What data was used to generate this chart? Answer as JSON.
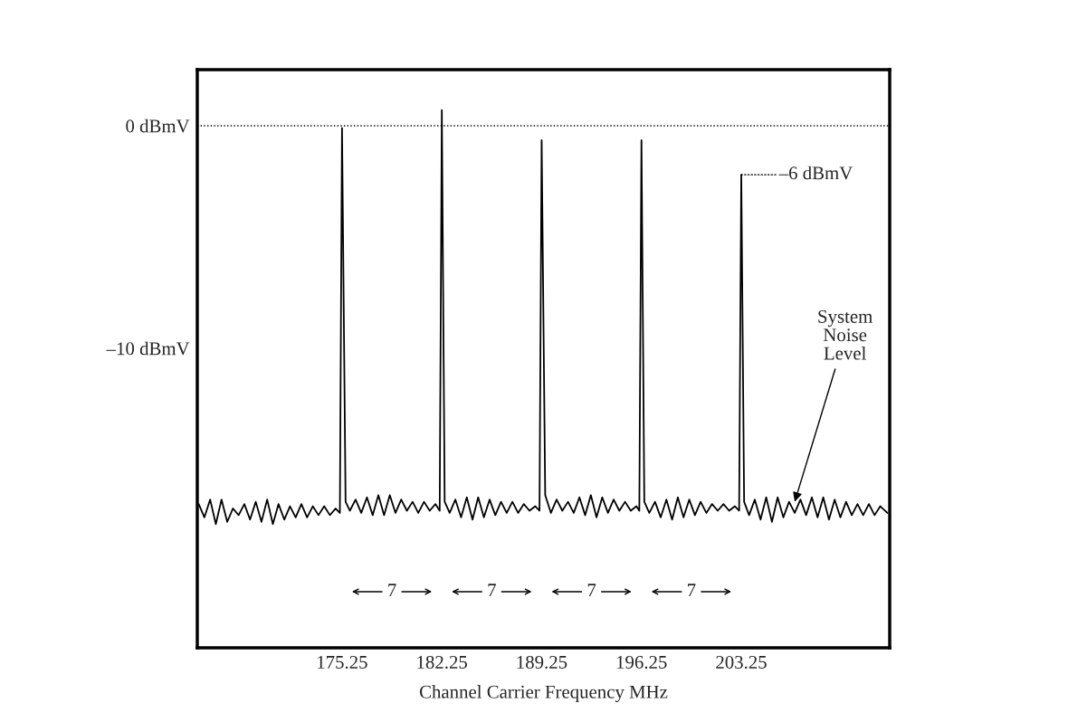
{
  "chart_data": {
    "type": "line",
    "xlabel": "Channel Carrier Frequency MHz",
    "x": [
      165.2,
      165.6,
      166.0,
      166.4,
      166.8,
      167.2,
      167.6,
      168.0,
      168.4,
      168.8,
      169.2,
      169.6,
      170.0,
      170.4,
      170.8,
      171.2,
      171.6,
      172.0,
      172.4,
      172.8,
      173.2,
      173.6,
      174.0,
      174.4,
      174.8,
      175.1,
      175.25,
      175.5,
      175.8,
      176.2,
      176.6,
      177.0,
      177.4,
      177.8,
      178.2,
      178.6,
      179.0,
      179.4,
      179.8,
      180.2,
      180.6,
      181.0,
      181.4,
      181.8,
      182.1,
      182.25,
      182.45,
      182.8,
      183.2,
      183.6,
      184.0,
      184.4,
      184.8,
      185.2,
      185.6,
      186.0,
      186.4,
      186.8,
      187.2,
      187.6,
      188.0,
      188.4,
      188.8,
      189.1,
      189.25,
      189.5,
      189.9,
      190.3,
      190.7,
      191.1,
      191.5,
      191.9,
      192.3,
      192.7,
      193.1,
      193.5,
      193.9,
      194.3,
      194.7,
      195.1,
      195.5,
      195.9,
      196.1,
      196.25,
      196.45,
      196.8,
      197.2,
      197.6,
      198.0,
      198.4,
      198.8,
      199.2,
      199.6,
      200.0,
      200.4,
      200.8,
      201.2,
      201.6,
      202.0,
      202.4,
      202.8,
      203.1,
      203.25,
      203.45,
      203.8,
      204.2,
      204.6,
      205.0,
      205.4,
      205.8,
      206.2,
      206.6,
      207.0,
      207.4,
      207.8,
      208.2,
      208.6,
      209.0,
      209.4,
      209.8,
      210.2,
      210.6,
      211.0,
      211.4,
      211.8,
      212.2,
      212.6,
      213.0,
      213.5
    ],
    "series": [
      {
        "color": "#000000",
        "values": [
          -17.0,
          -17.6,
          -16.8,
          -17.9,
          -16.8,
          -17.8,
          -17.2,
          -17.5,
          -17.0,
          -17.7,
          -16.9,
          -17.8,
          -16.8,
          -17.9,
          -17.0,
          -17.7,
          -17.1,
          -17.6,
          -17.0,
          -17.6,
          -17.1,
          -17.5,
          -17.1,
          -17.5,
          -17.2,
          -17.4,
          -0.1,
          -16.9,
          -17.3,
          -16.8,
          -17.4,
          -16.7,
          -17.5,
          -16.6,
          -17.5,
          -16.6,
          -17.4,
          -16.8,
          -17.3,
          -16.9,
          -17.4,
          -16.9,
          -17.3,
          -17.0,
          -17.3,
          0.7,
          -16.9,
          -17.4,
          -16.8,
          -17.6,
          -16.7,
          -17.7,
          -16.7,
          -17.6,
          -16.8,
          -17.5,
          -16.9,
          -17.4,
          -16.9,
          -17.4,
          -17.0,
          -17.3,
          -17.1,
          -17.3,
          -0.65,
          -16.6,
          -17.4,
          -16.8,
          -17.3,
          -16.9,
          -17.4,
          -16.7,
          -17.5,
          -16.6,
          -17.6,
          -16.7,
          -17.4,
          -16.8,
          -17.3,
          -16.9,
          -17.3,
          -17.1,
          -17.3,
          -0.65,
          -16.9,
          -17.4,
          -16.9,
          -17.6,
          -16.8,
          -17.7,
          -16.7,
          -17.6,
          -16.8,
          -17.5,
          -16.9,
          -17.4,
          -17.0,
          -17.3,
          -17.0,
          -17.3,
          -17.1,
          -17.3,
          -2.2,
          -16.9,
          -17.5,
          -16.8,
          -17.7,
          -16.7,
          -17.8,
          -16.7,
          -17.6,
          -16.9,
          -17.4,
          -16.8,
          -17.5,
          -16.7,
          -17.6,
          -16.7,
          -17.7,
          -16.8,
          -17.6,
          -16.9,
          -17.5,
          -17.0,
          -17.5,
          -17.0,
          -17.5,
          -17.1,
          -17.4
        ]
      }
    ],
    "xlim": [
      165.1,
      213.66
    ],
    "ylim": [
      -23.46,
      2.52
    ],
    "xticks": [
      175.25,
      182.25,
      189.25,
      196.25,
      203.25
    ],
    "yticks": [
      {
        "value": 0,
        "label": "0 dBmV"
      },
      {
        "value": -10,
        "label": "–10 dBmV"
      }
    ],
    "ref_lines": [
      {
        "axis": "y",
        "value": 0,
        "color": "#000000",
        "line_style": "dotted"
      }
    ],
    "annotations": [
      {
        "text": "–6 dBmV",
        "x": 203.25,
        "y": -2.2
      },
      {
        "text": "System\nNoise\nLevel",
        "x": 207.0,
        "y": -16.9
      },
      "7",
      "7",
      "7",
      "7"
    ],
    "grid": false,
    "legend": false
  }
}
